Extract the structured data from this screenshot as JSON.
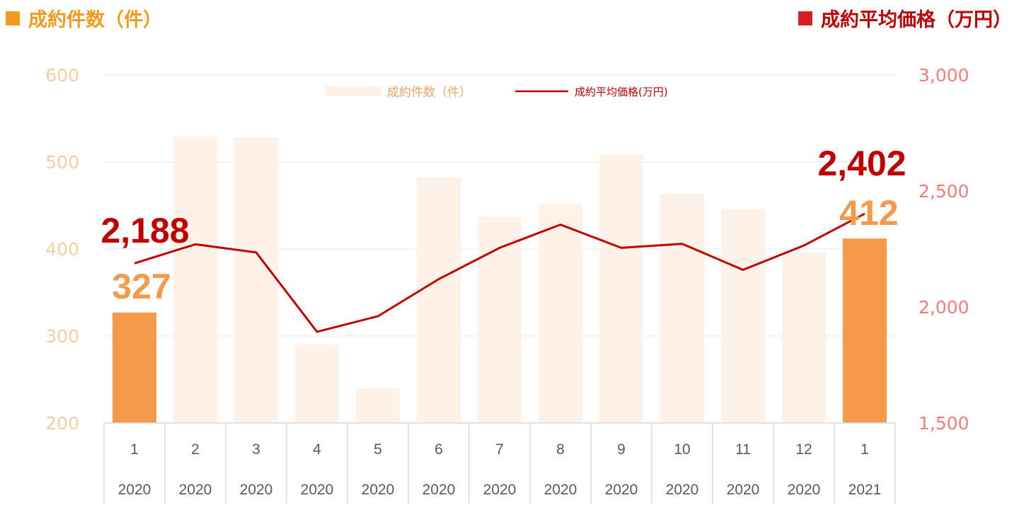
{
  "header": {
    "left_label": "成約件数（件）",
    "right_label": "成約平均価格（万円）"
  },
  "colors": {
    "bar_highlight": "#F59A4A",
    "bar_normal": "#FDF1E8",
    "line": "#C00000",
    "left_axis": "#F9CCA3",
    "right_axis": "#F27C7C",
    "grid": "#E6E6E6"
  },
  "chart_data": {
    "type": "bar",
    "categories": [
      {
        "month": "1",
        "year": "2020"
      },
      {
        "month": "2",
        "year": "2020"
      },
      {
        "month": "3",
        "year": "2020"
      },
      {
        "month": "4",
        "year": "2020"
      },
      {
        "month": "5",
        "year": "2020"
      },
      {
        "month": "6",
        "year": "2020"
      },
      {
        "month": "7",
        "year": "2020"
      },
      {
        "month": "8",
        "year": "2020"
      },
      {
        "month": "9",
        "year": "2020"
      },
      {
        "month": "10",
        "year": "2020"
      },
      {
        "month": "11",
        "year": "2020"
      },
      {
        "month": "12",
        "year": "2020"
      },
      {
        "month": "1",
        "year": "2021"
      }
    ],
    "series": [
      {
        "name": "成約件数（件）",
        "type": "bar",
        "axis": "left",
        "values": [
          327,
          529,
          528,
          290,
          240,
          482,
          437,
          451,
          509,
          463,
          446,
          396,
          412
        ],
        "highlight": [
          0,
          12
        ]
      },
      {
        "name": "成約平均価格(万円)",
        "type": "line",
        "axis": "right",
        "values": [
          2188,
          2270,
          2235,
          1893,
          1960,
          2120,
          2255,
          2355,
          2255,
          2272,
          2160,
          2265,
          2402
        ]
      }
    ],
    "left_axis": {
      "ylim": [
        200,
        600
      ],
      "ticks": [
        "200",
        "300",
        "400",
        "500",
        "600"
      ]
    },
    "right_axis": {
      "ylim": [
        1500,
        3000
      ],
      "ticks": [
        "1,500",
        "2,000",
        "2,500",
        "3,000"
      ]
    },
    "annotations": {
      "first_bar_value": "327",
      "last_bar_value": "412",
      "first_line_value": "2,188",
      "last_line_value": "2,402"
    },
    "legend": "top-center",
    "grid": true
  }
}
